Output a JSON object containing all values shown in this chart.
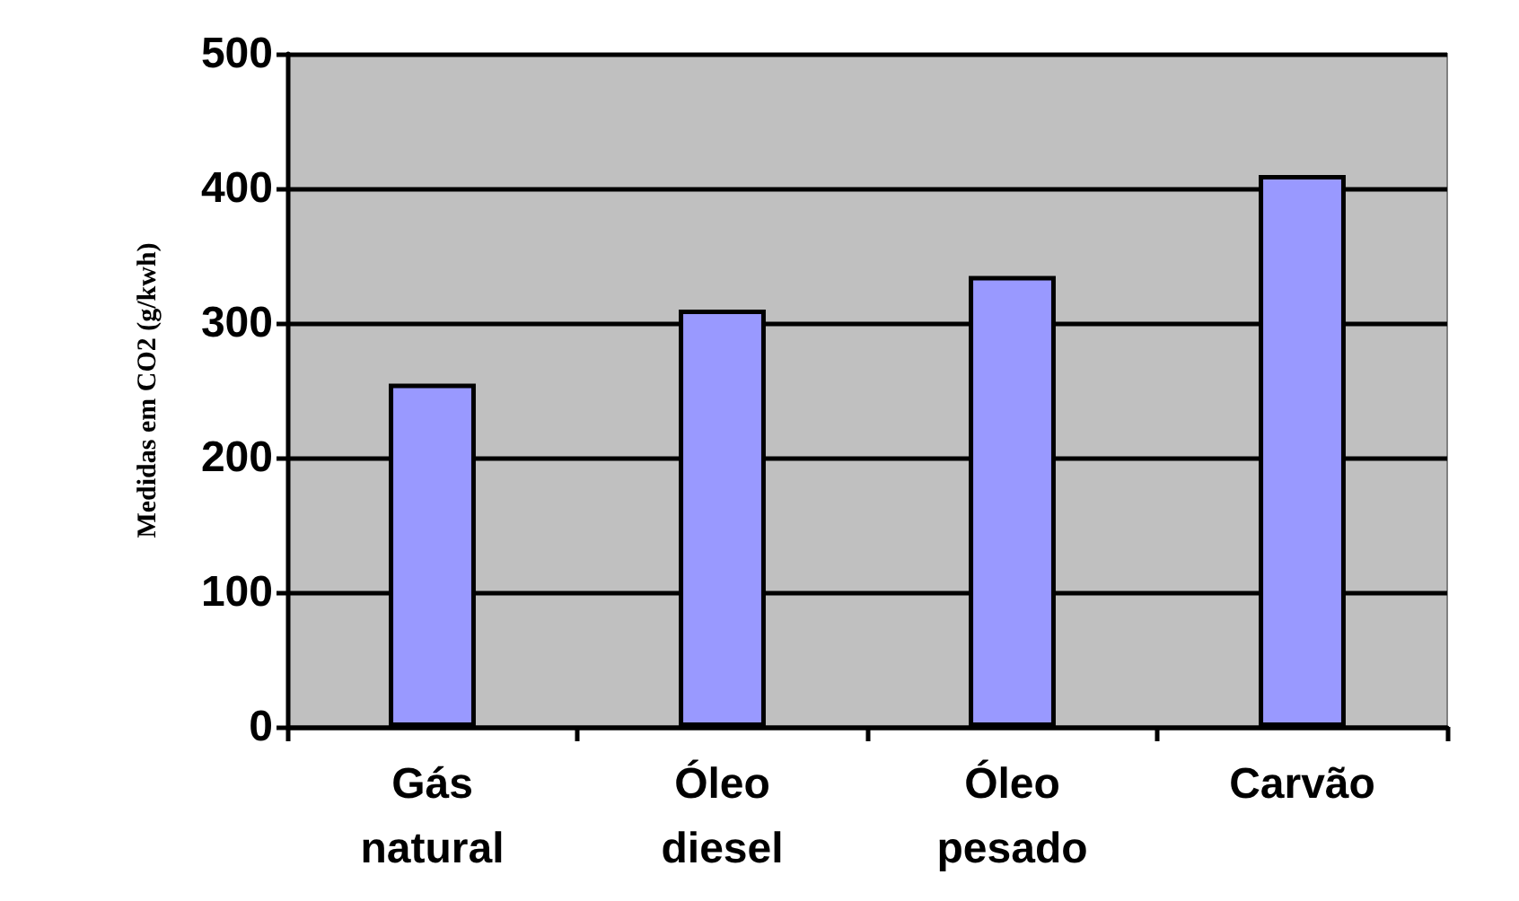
{
  "chart_data": {
    "type": "bar",
    "ylabel": "Medidas em CO2 (g/kwh)",
    "categories": [
      "Gás natural",
      "Óleo diesel",
      "Óleo pesado",
      "Carvão"
    ],
    "values": [
      255,
      310,
      335,
      410
    ],
    "color": "#9999ff",
    "ylim": [
      0,
      500
    ],
    "yticks": [
      0,
      100,
      200,
      300,
      400,
      500
    ],
    "grid": "y"
  }
}
